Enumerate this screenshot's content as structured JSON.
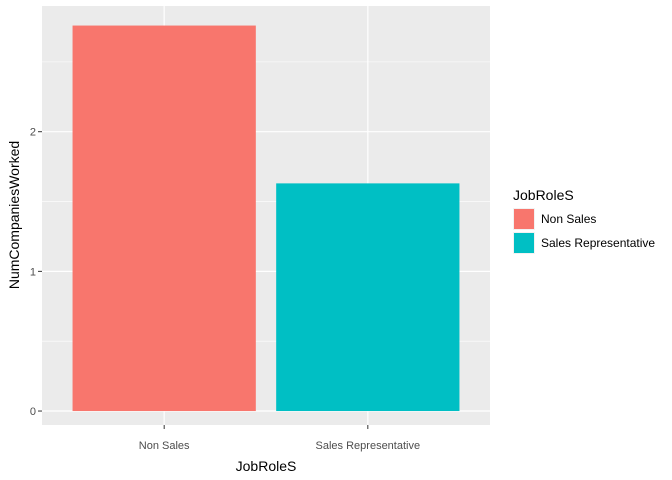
{
  "chart_data": {
    "type": "bar",
    "categories": [
      "Non Sales",
      "Sales Representative"
    ],
    "values": [
      2.76,
      1.63
    ],
    "colors": [
      "#F8766D",
      "#00BFC4"
    ],
    "xlabel": "JobRoleS",
    "ylabel": "NumCompaniesWorked",
    "ylim": [
      -0.1,
      2.9
    ],
    "yticks": [
      0,
      1,
      2
    ],
    "ytick_labels": [
      "0",
      "1",
      "2"
    ],
    "xtick_labels": [
      "Non Sales",
      "Sales Representative"
    ],
    "grid": true,
    "panel_background": "#EBEBEB",
    "legend": {
      "title": "JobRoleS",
      "placement": "right",
      "entries": [
        {
          "label": "Non Sales",
          "color": "#F8766D"
        },
        {
          "label": "Sales Representative",
          "color": "#00BFC4"
        }
      ]
    }
  }
}
